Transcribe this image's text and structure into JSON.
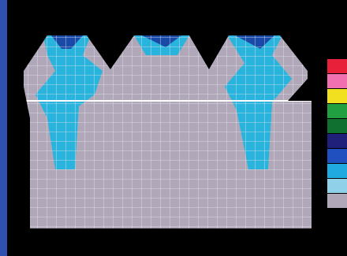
{
  "legend": {
    "colors": [
      "#e8203a",
      "#f070b0",
      "#f0e020",
      "#20a040",
      "#107030",
      "#20207a",
      "#2050c0",
      "#20a8e0",
      "#90d0e8",
      "#b0a8b8"
    ]
  }
}
